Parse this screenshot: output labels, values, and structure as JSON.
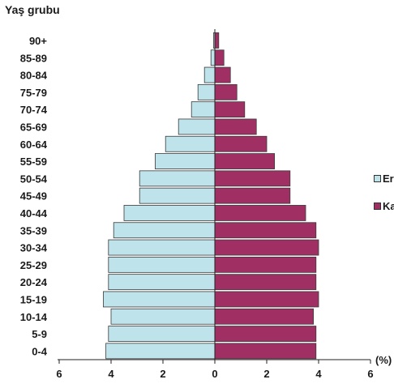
{
  "chart_data": {
    "type": "bar",
    "orientation": "horizontal",
    "title": "",
    "ylabel": "Yaş grubu",
    "xlabel": "(%)",
    "categories": [
      "0-4",
      "5-9",
      "10-14",
      "15-19",
      "20-24",
      "25-29",
      "30-34",
      "35-39",
      "40-44",
      "45-49",
      "50-54",
      "55-59",
      "60-64",
      "65-69",
      "70-74",
      "75-79",
      "80-84",
      "85-89",
      "90+"
    ],
    "series": [
      {
        "name": "Erkek",
        "color": "#bfe3ea",
        "values": [
          4.2,
          4.1,
          4.0,
          4.3,
          4.1,
          4.1,
          4.1,
          3.9,
          3.5,
          2.9,
          2.9,
          2.3,
          1.9,
          1.4,
          0.9,
          0.65,
          0.4,
          0.15,
          0.05
        ]
      },
      {
        "name": "Kadın",
        "color": "#a03064",
        "values": [
          3.9,
          3.9,
          3.8,
          4.0,
          3.9,
          3.9,
          4.0,
          3.9,
          3.5,
          2.9,
          2.9,
          2.3,
          2.0,
          1.6,
          1.15,
          0.85,
          0.6,
          0.35,
          0.15
        ]
      }
    ],
    "xlim": [
      -6,
      6
    ],
    "xticks": [
      "6",
      "4",
      "2",
      "0",
      "2",
      "4",
      "6"
    ],
    "legend_labels": [
      "Er",
      "Ka"
    ],
    "legend_position": "right",
    "grid": false
  }
}
